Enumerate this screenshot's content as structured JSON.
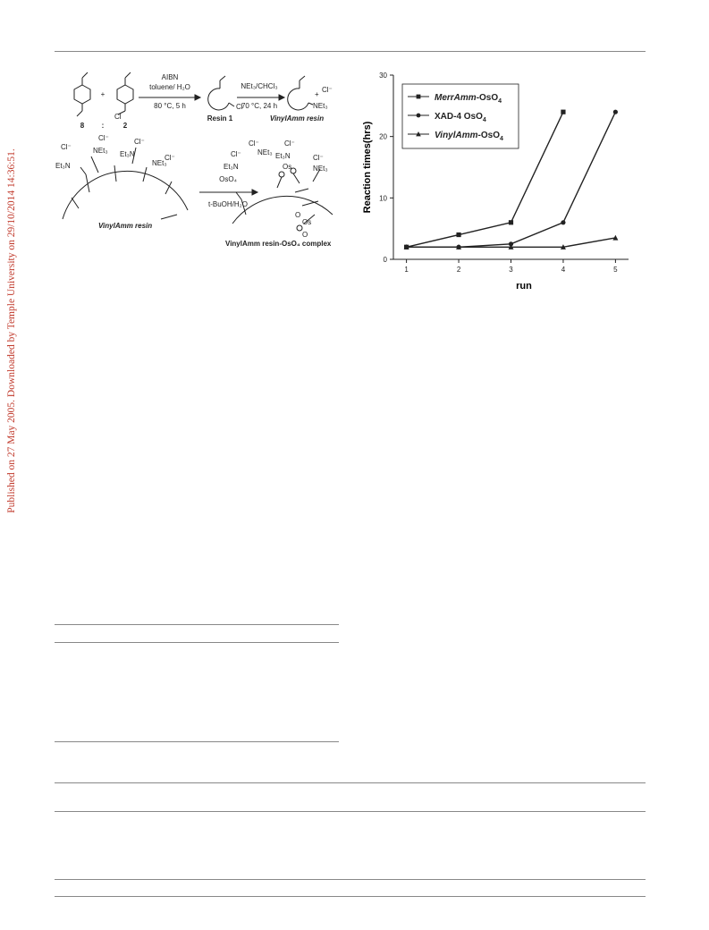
{
  "watermark": "Published on 27 May 2005. Downloaded by Temple University on 29/10/2014 14:36:51.",
  "scheme": {
    "compound_8": "8",
    "colon": ":",
    "compound_2": "2",
    "plus": "+",
    "step1_reagent": "AIBN",
    "step1_solvent": "toluene/ H₂O",
    "step1_conditions": "80 °C, 5 h",
    "resin1_label": "Resin 1",
    "step2_reagent": "NEt₃/CHCl₃",
    "step2_conditions": "70 °C, 24 h",
    "vinylamm_resin_label_top": "VinylAmm resin",
    "vinylamm_resin_label": "VinylAmm resin",
    "step3_reagent": "OsO₄",
    "step3_solvent": "t-BuOH/H₂O",
    "complex_label": "VinylAmm resin-OsO₄ complex",
    "cl_label": "Cl",
    "cl_minus": "Cl⁻",
    "net3_label": "NEt₃",
    "et3n_label": "Et₃N",
    "os_label": "Os",
    "o_label": "O",
    "plus_sign": "+"
  },
  "chart_data": {
    "type": "line",
    "x": [
      1,
      2,
      3,
      4,
      5
    ],
    "xlabel": "run",
    "ylabel": "Reaction times(hrs)",
    "xlim": [
      0.75,
      5.25
    ],
    "ylim": [
      0,
      30
    ],
    "xticks": [
      1,
      2,
      3,
      4,
      5
    ],
    "yticks": [
      0,
      10,
      20,
      30
    ],
    "legend_position": "top-left",
    "grid": false,
    "series": [
      {
        "name": "MerrAmm-OsO4",
        "name_italic": "MerrAmm",
        "name_rest": "-OsO",
        "subscript": "4",
        "marker": "square",
        "x": [
          1,
          2,
          3,
          4
        ],
        "values": [
          2,
          4,
          6,
          24
        ]
      },
      {
        "name": "XAD-4 OsO4",
        "name_italic": "",
        "name_rest": "XAD-4 OsO",
        "subscript": "4",
        "marker": "circle",
        "x": [
          1,
          2,
          3,
          4,
          5
        ],
        "values": [
          2,
          2,
          2.5,
          6,
          24
        ]
      },
      {
        "name": "VinylAmm-OsO4",
        "name_italic": "VinylAmm",
        "name_rest": "-OsO",
        "subscript": "4",
        "marker": "triangle",
        "x": [
          1,
          2,
          3,
          4,
          5
        ],
        "values": [
          2,
          2,
          2,
          2,
          3.5
        ]
      }
    ]
  }
}
